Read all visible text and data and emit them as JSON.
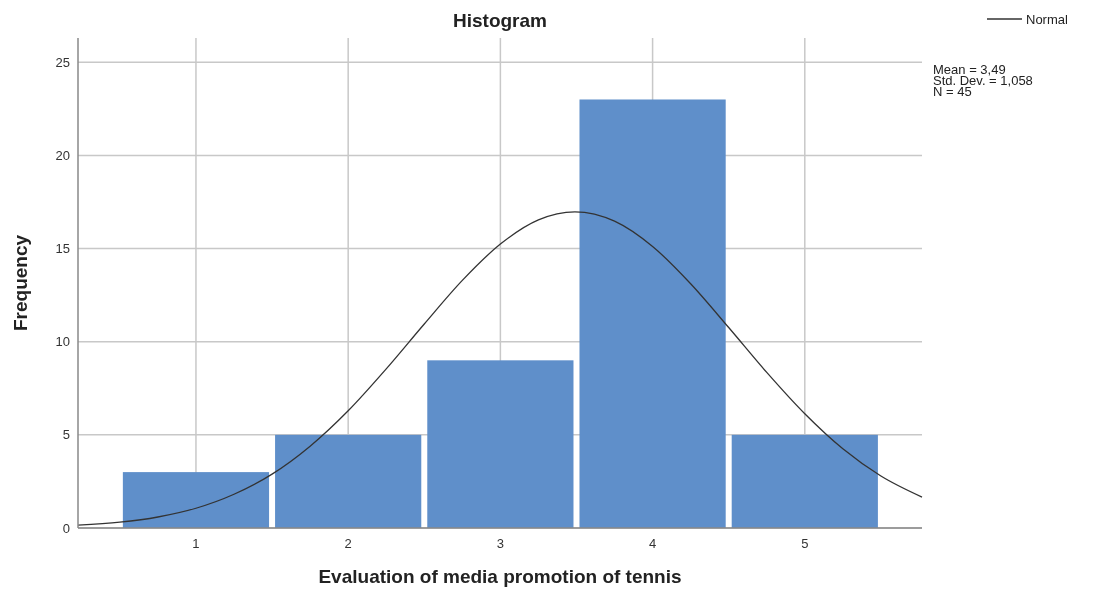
{
  "chart_data": {
    "type": "histogram",
    "title": "Histogram",
    "xlabel": "Evaluation of media promotion of tennis",
    "ylabel": "Frequency",
    "bins": [
      0.5,
      1.5,
      2.5,
      3.5,
      4.5,
      5.5
    ],
    "values": [
      3,
      5,
      9,
      23,
      5
    ],
    "color": "#5f8fca",
    "series": [
      {
        "type": "line",
        "name": "Normal",
        "color": "#333333",
        "x": [
          0.225,
          0.5,
          0.75,
          1,
          1.25,
          1.5,
          1.75,
          2,
          2.25,
          2.5,
          2.75,
          3,
          3.25,
          3.49,
          3.75,
          4,
          4.25,
          4.5,
          4.75,
          5,
          5.25,
          5.5,
          5.77
        ],
        "values": [
          0.15,
          0.31,
          0.59,
          1.06,
          1.81,
          2.89,
          4.39,
          6.29,
          8.54,
          10.95,
          13.29,
          15.24,
          16.54,
          16.97,
          16.47,
          15.11,
          13.11,
          10.76,
          8.35,
          6.13,
          4.25,
          2.79,
          1.66
        ]
      }
    ],
    "xlim": [
      0.225,
      5.77
    ],
    "xticks": [
      1,
      2,
      3,
      4,
      5
    ],
    "ylim": [
      0,
      26.3
    ],
    "yticks": [
      0,
      5,
      10,
      15,
      20,
      25
    ],
    "annotations": [
      "Mean = 3,49",
      "Std. Dev. = 1,058",
      "N = 45"
    ],
    "grid": true,
    "legend": "top right"
  }
}
